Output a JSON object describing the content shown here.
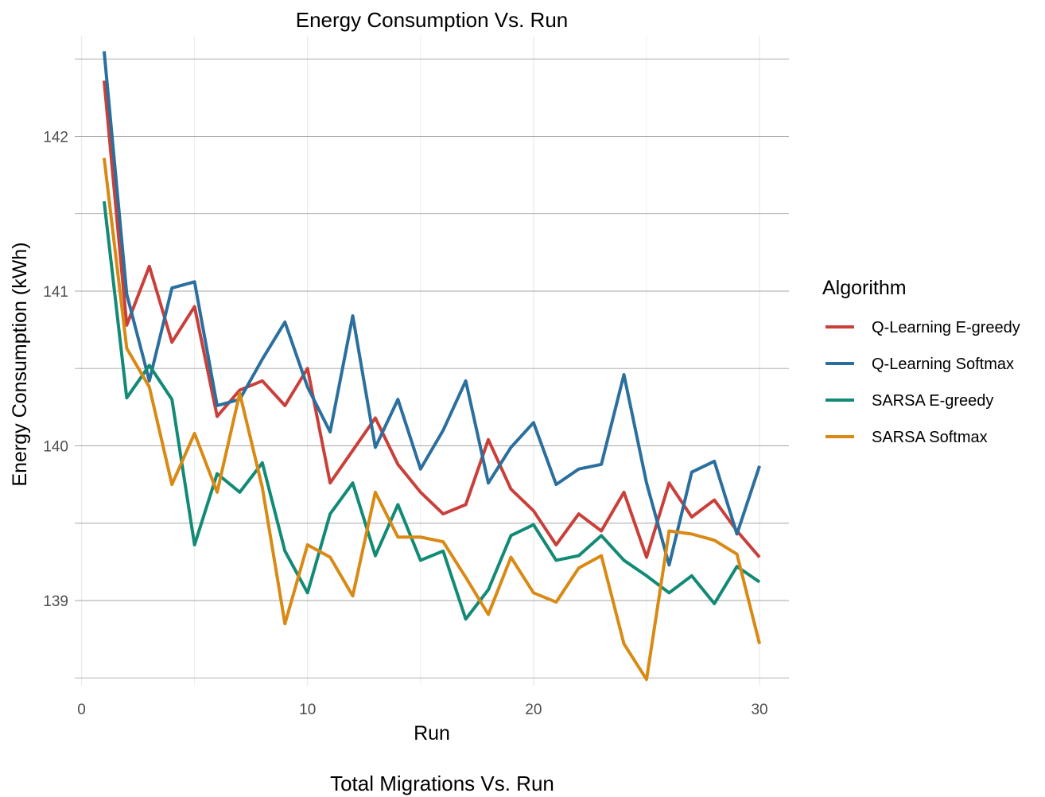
{
  "chart_data": {
    "type": "line",
    "title": "Energy Consumption Vs. Run",
    "xlabel": "Run",
    "ylabel": "Energy Consumption (kWh)",
    "caption": "Total Migrations Vs. Run",
    "xlim": [
      -0.3,
      31.3
    ],
    "ylim": [
      138.45,
      142.65
    ],
    "x_ticks": [
      0,
      10,
      20,
      30
    ],
    "y_ticks": [
      139,
      140,
      141,
      142
    ],
    "grid": true,
    "legend": {
      "title": "Algorithm",
      "position": "right"
    },
    "x": [
      1,
      2,
      3,
      4,
      5,
      6,
      7,
      8,
      9,
      10,
      11,
      12,
      13,
      14,
      15,
      16,
      17,
      18,
      19,
      20,
      21,
      22,
      23,
      24,
      25,
      26,
      27,
      28,
      29,
      30
    ],
    "series": [
      {
        "name": "Q-Learning E-greedy",
        "color": "#c9403a",
        "values": [
          142.36,
          140.78,
          141.16,
          140.67,
          140.9,
          140.19,
          140.36,
          140.42,
          140.26,
          140.5,
          139.76,
          139.97,
          140.18,
          139.88,
          139.7,
          139.56,
          139.62,
          140.04,
          139.72,
          139.58,
          139.36,
          139.56,
          139.45,
          139.7,
          139.28,
          139.76,
          139.54,
          139.65,
          139.45,
          139.28
        ]
      },
      {
        "name": "Q-Learning Softmax",
        "color": "#2b6f9e",
        "values": [
          142.55,
          140.98,
          140.42,
          141.02,
          141.06,
          140.26,
          140.3,
          140.56,
          140.8,
          140.38,
          140.09,
          140.84,
          139.99,
          140.3,
          139.85,
          140.1,
          140.42,
          139.76,
          139.99,
          140.15,
          139.75,
          139.85,
          139.88,
          140.46,
          139.76,
          139.23,
          139.83,
          139.9,
          139.43,
          139.87
        ]
      },
      {
        "name": "SARSA E-greedy",
        "color": "#128a75",
        "values": [
          141.58,
          140.31,
          140.52,
          140.3,
          139.36,
          139.82,
          139.7,
          139.89,
          139.32,
          139.05,
          139.56,
          139.76,
          139.29,
          139.62,
          139.26,
          139.32,
          138.88,
          139.07,
          139.42,
          139.49,
          139.26,
          139.29,
          139.42,
          139.26,
          139.16,
          139.05,
          139.16,
          138.98,
          139.22,
          139.12
        ]
      },
      {
        "name": "SARSA Softmax",
        "color": "#d88a14",
        "values": [
          141.86,
          140.63,
          140.38,
          139.75,
          140.08,
          139.7,
          140.34,
          139.73,
          138.85,
          139.36,
          139.28,
          139.03,
          139.7,
          139.41,
          139.41,
          139.38,
          139.15,
          138.91,
          139.28,
          139.05,
          138.99,
          139.21,
          139.29,
          138.72,
          138.49,
          139.45,
          139.43,
          139.39,
          139.3,
          138.72
        ]
      }
    ]
  }
}
